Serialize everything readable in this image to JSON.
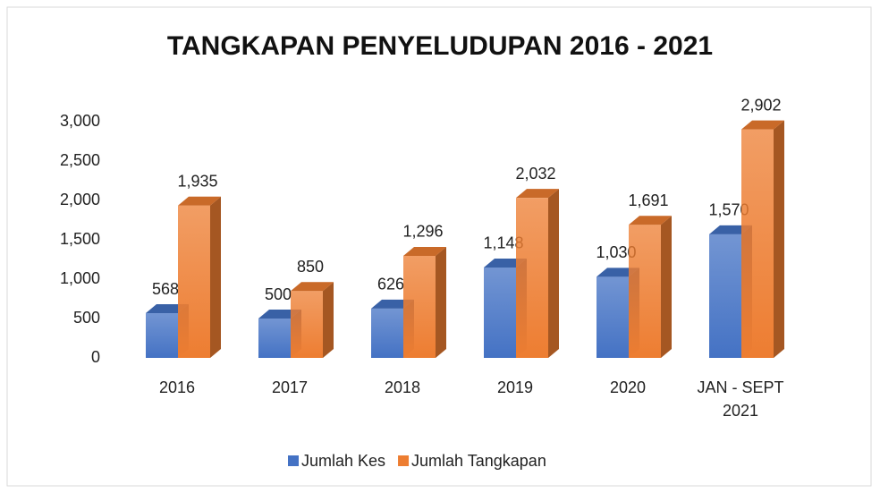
{
  "chart_data": {
    "type": "bar3d",
    "title": "TANGKAPAN PENYELUDUPAN 2016 - 2021",
    "categories": [
      "2016",
      "2017",
      "2018",
      "2019",
      "2020",
      "JAN - SEPT 2021"
    ],
    "series": [
      {
        "name": "Jumlah Kes",
        "color": "#4472c4",
        "values": [
          568,
          500,
          626,
          1148,
          1030,
          1570
        ],
        "value_labels": [
          "568",
          "500",
          "626",
          "1,148",
          "1,030",
          "1,570"
        ]
      },
      {
        "name": "Jumlah Tangkapan",
        "color": "#ed7d31",
        "values": [
          1935,
          850,
          1296,
          2032,
          1691,
          2902
        ],
        "value_labels": [
          "1,935",
          "850",
          "1,296",
          "2,032",
          "1,691",
          "2,902"
        ]
      }
    ],
    "ylim": [
      0,
      3000
    ],
    "yticks": [
      0,
      500,
      {
        "value": 1000,
        "label": "1,000"
      },
      {
        "value": 1500,
        "label": "1,500"
      },
      {
        "value": 2000,
        "label": "2,000"
      },
      {
        "value": 2500,
        "label": "2,500"
      },
      {
        "value": 3000,
        "label": "3,000"
      }
    ],
    "legend": "bottom"
  }
}
